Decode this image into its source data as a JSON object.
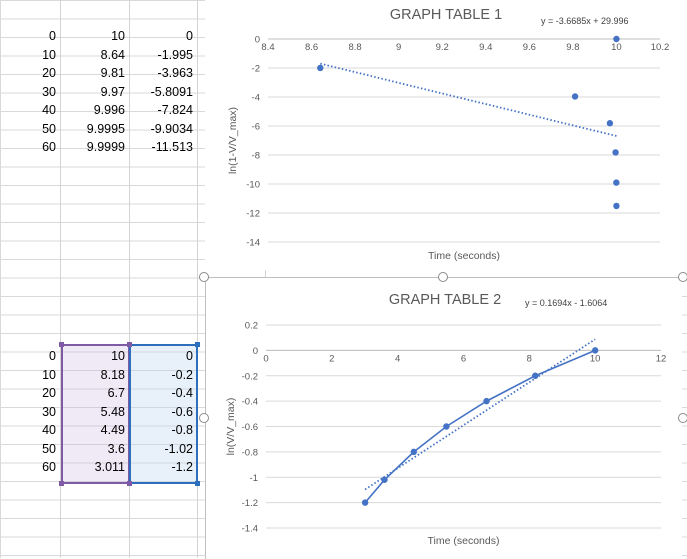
{
  "table1": {
    "rows": [
      [
        "0",
        "10",
        "0"
      ],
      [
        "10",
        "8.64",
        "-1.995"
      ],
      [
        "20",
        "9.81",
        "-3.963"
      ],
      [
        "30",
        "9.97",
        "-5.8091"
      ],
      [
        "40",
        "9.996",
        "-7.824"
      ],
      [
        "50",
        "9.9995",
        "-9.9034"
      ],
      [
        "60",
        "9.9999",
        "-11.513"
      ]
    ]
  },
  "table2": {
    "rows": [
      [
        "0",
        "10",
        "0"
      ],
      [
        "10",
        "8.18",
        "-0.2"
      ],
      [
        "20",
        "6.7",
        "-0.4"
      ],
      [
        "30",
        "5.48",
        "-0.6"
      ],
      [
        "40",
        "4.49",
        "-0.8"
      ],
      [
        "50",
        "3.6",
        "-1.02"
      ],
      [
        "60",
        "3.011",
        "-1.2"
      ]
    ]
  },
  "colors": {
    "series": "#4472c4",
    "selection_purple": "#7f5aa5",
    "selection_blue": "#2e6fbd"
  },
  "chart_data": [
    {
      "type": "scatter",
      "title": "GRAPH TABLE 1",
      "xlabel": "Time (seconds)",
      "ylabel": "ln(1-V/V_max)",
      "trendline_equation": "y = -3.6685x + 29.996",
      "trendline": {
        "slope": -3.6685,
        "intercept": 29.996,
        "x_range": [
          8.64,
          10
        ]
      },
      "xlim": [
        8.4,
        10.2
      ],
      "ylim": [
        -14,
        0
      ],
      "x_ticks": [
        "8.4",
        "8.6",
        "8.8",
        "9",
        "9.2",
        "9.4",
        "9.6",
        "9.8",
        "10",
        "10.2"
      ],
      "y_ticks": [
        "0",
        "-2",
        "-4",
        "-6",
        "-8",
        "-10",
        "-12",
        "-14"
      ],
      "x": [
        10,
        8.64,
        9.81,
        9.97,
        9.996,
        9.9995,
        9.9999
      ],
      "y": [
        0,
        -1.995,
        -3.963,
        -5.8091,
        -7.824,
        -9.9034,
        -11.513
      ],
      "grid": true
    },
    {
      "type": "line",
      "title": "GRAPH TABLE 2",
      "xlabel": "Time (seconds)",
      "ylabel": "ln(V/V_max)",
      "trendline_equation": "y = 0.1694x - 1.6064",
      "trendline": {
        "slope": 0.1694,
        "intercept": -1.6064,
        "x_range": [
          3.011,
          10
        ]
      },
      "xlim": [
        0,
        12
      ],
      "ylim": [
        -1.4,
        0.2
      ],
      "x_ticks": [
        "0",
        "2",
        "4",
        "6",
        "8",
        "10",
        "12"
      ],
      "y_ticks": [
        "0.2",
        "0",
        "-0.2",
        "-0.4",
        "-0.6",
        "-0.8",
        "-1",
        "-1.2",
        "-1.4"
      ],
      "x": [
        10,
        8.18,
        6.7,
        5.48,
        4.49,
        3.6,
        3.011
      ],
      "y": [
        0,
        -0.2,
        -0.4,
        -0.6,
        -0.8,
        -1.02,
        -1.2
      ],
      "grid": true
    }
  ]
}
